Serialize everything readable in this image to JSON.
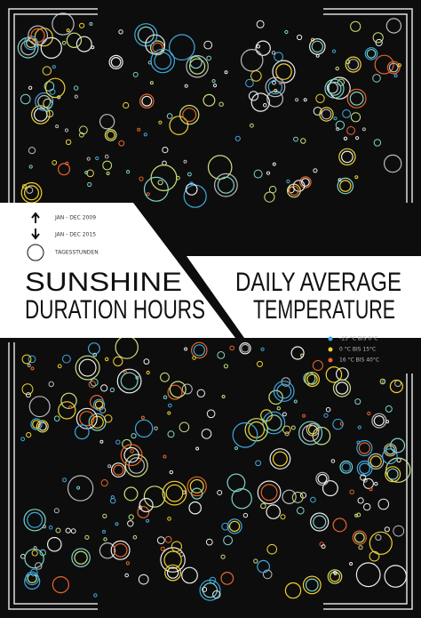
{
  "legend_left": {
    "items": [
      "JAN - DEC 2009",
      "JAN - DEC 2015",
      "TAGESSTUNDEN"
    ]
  },
  "title_left": {
    "lines": [
      "SUNSHINE",
      "DURATION HOURS"
    ]
  },
  "title_right": {
    "lines": [
      "DAILY AVERAGE",
      "TEMPERATURE"
    ]
  },
  "legend_right": {
    "items": [
      "-15 °C BIS 0°C",
      "0 °C BIS 15°C",
      "16 °C BIS 40°C"
    ]
  }
}
